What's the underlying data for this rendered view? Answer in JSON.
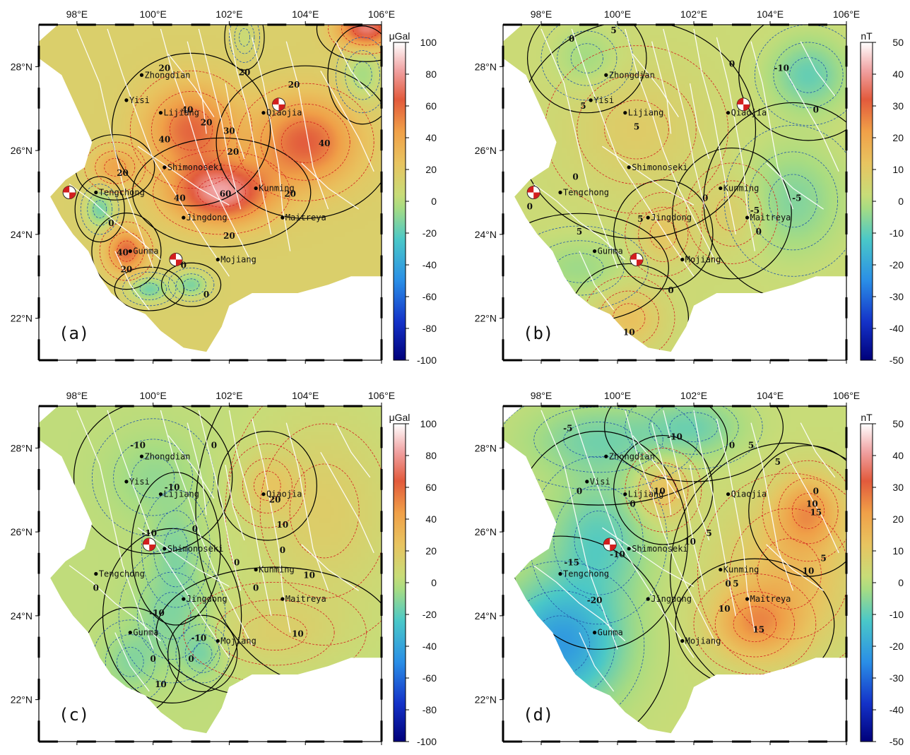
{
  "colors": {
    "ocean": "#ffffff",
    "fault": "#ffffff",
    "zero_contour": "#000000",
    "pos_contour": "#d42020",
    "neg_contour": "#2255aa",
    "city_dot": "#000000",
    "beachball_red": "#d21e1e"
  },
  "colorscale": {
    "name": "GMT polar-like diverging",
    "stops": [
      {
        "t": 0.0,
        "color": "#00007a"
      },
      {
        "t": 0.12,
        "color": "#1432c8"
      },
      {
        "t": 0.25,
        "color": "#2a8ee6"
      },
      {
        "t": 0.38,
        "color": "#4ac8c8"
      },
      {
        "t": 0.48,
        "color": "#a8dc82"
      },
      {
        "t": 0.52,
        "color": "#c8dc78"
      },
      {
        "t": 0.62,
        "color": "#e8c460"
      },
      {
        "t": 0.72,
        "color": "#f0a048"
      },
      {
        "t": 0.82,
        "color": "#e25a3c"
      },
      {
        "t": 0.91,
        "color": "#f0a0a0"
      },
      {
        "t": 1.0,
        "color": "#ffffff"
      }
    ]
  },
  "map_extent": {
    "lon": [
      97,
      106
    ],
    "lat": [
      21,
      29
    ]
  },
  "lon_ticks": [
    "98°E",
    "100°E",
    "102°E",
    "104°E",
    "106°E"
  ],
  "lat_ticks": [
    "22°N",
    "24°N",
    "26°N",
    "28°N"
  ],
  "lon_tick_values": [
    98,
    100,
    102,
    104,
    106
  ],
  "lat_tick_values": [
    22,
    24,
    26,
    28
  ],
  "cities": [
    {
      "name": "Zhongdian",
      "lon": 99.7,
      "lat": 27.8
    },
    {
      "name": "Lijiang",
      "lon": 100.2,
      "lat": 26.9
    },
    {
      "name": "Qiaojia",
      "lon": 102.9,
      "lat": 26.9
    },
    {
      "name": "Kunming",
      "lon": 102.7,
      "lat": 25.1
    },
    {
      "name": "Tengchong",
      "lon": 98.5,
      "lat": 25.0
    },
    {
      "name": "Jingdong",
      "lon": 100.8,
      "lat": 24.4
    },
    {
      "name": "Maitreya",
      "lon": 103.4,
      "lat": 24.4
    },
    {
      "name": "Mojiang",
      "lon": 101.7,
      "lat": 23.4
    },
    {
      "name": "Gunma",
      "lon": 99.4,
      "lat": 23.6
    }
  ],
  "chart_data": [
    {
      "type": "heatmap",
      "panel_label": "(a)",
      "colorbar_unit": "μGal",
      "colorbar_ticks": [
        "100",
        "80",
        "60",
        "40",
        "20",
        "0",
        "-20",
        "-40",
        "-60",
        "-80",
        "-100"
      ],
      "colorbar_range": [
        -100,
        100
      ],
      "extra_places": [
        {
          "name": "Yisi",
          "lon": 99.3,
          "lat": 27.2
        },
        {
          "name": "Shimonoseki",
          "lon": 100.3,
          "lat": 25.6
        }
      ],
      "anomalies": [
        {
          "lon": 101.8,
          "lat": 25.0,
          "value": 65,
          "sx": 0.9,
          "sy": 0.5
        },
        {
          "lon": 101.0,
          "lat": 26.5,
          "value": 45,
          "sx": 0.8,
          "sy": 0.7
        },
        {
          "lon": 104.0,
          "lat": 26.2,
          "value": 48,
          "sx": 0.9,
          "sy": 0.7
        },
        {
          "lon": 105.6,
          "lat": 28.9,
          "value": 60,
          "sx": 0.5,
          "sy": 0.3
        },
        {
          "lon": 99.3,
          "lat": 23.6,
          "value": 45,
          "sx": 0.35,
          "sy": 0.35
        },
        {
          "lon": 98.6,
          "lat": 24.6,
          "value": -30,
          "sx": 0.25,
          "sy": 0.3
        },
        {
          "lon": 99.9,
          "lat": 22.7,
          "value": -30,
          "sx": 0.35,
          "sy": 0.2
        },
        {
          "lon": 101.0,
          "lat": 22.8,
          "value": -28,
          "sx": 0.3,
          "sy": 0.2
        },
        {
          "lon": 105.5,
          "lat": 27.8,
          "value": -20,
          "sx": 0.35,
          "sy": 0.45
        },
        {
          "lon": 102.4,
          "lat": 28.7,
          "value": -10,
          "sx": 0.2,
          "sy": 0.3
        },
        {
          "lon": 99.0,
          "lat": 25.6,
          "value": 25,
          "sx": 0.4,
          "sy": 0.3
        }
      ],
      "base": 15,
      "contour_labels": [
        {
          "text": "20",
          "lon": 100.3,
          "lat": 27.9
        },
        {
          "text": "20",
          "lon": 102.4,
          "lat": 27.8
        },
        {
          "text": "20",
          "lon": 103.7,
          "lat": 27.5
        },
        {
          "text": "40",
          "lon": 100.9,
          "lat": 26.9
        },
        {
          "text": "20",
          "lon": 101.4,
          "lat": 26.6
        },
        {
          "text": "30",
          "lon": 102.0,
          "lat": 26.4
        },
        {
          "text": "40",
          "lon": 100.3,
          "lat": 26.2
        },
        {
          "text": "20",
          "lon": 102.1,
          "lat": 25.9
        },
        {
          "text": "40",
          "lon": 104.5,
          "lat": 26.1
        },
        {
          "text": "20",
          "lon": 99.2,
          "lat": 25.4
        },
        {
          "text": "40",
          "lon": 100.7,
          "lat": 24.8
        },
        {
          "text": "60",
          "lon": 101.9,
          "lat": 24.9
        },
        {
          "text": "20",
          "lon": 103.6,
          "lat": 24.9
        },
        {
          "text": "20",
          "lon": 102.0,
          "lat": 23.9
        },
        {
          "text": "0",
          "lon": 98.9,
          "lat": 24.2
        },
        {
          "text": "40",
          "lon": 99.2,
          "lat": 23.5
        },
        {
          "text": "20",
          "lon": 99.3,
          "lat": 23.1
        },
        {
          "text": "0",
          "lon": 100.8,
          "lat": 23.2
        },
        {
          "text": "0",
          "lon": 101.4,
          "lat": 22.5
        }
      ],
      "beachballs": [
        {
          "lon": 103.3,
          "lat": 27.1
        },
        {
          "lon": 97.8,
          "lat": 25.0
        },
        {
          "lon": 100.6,
          "lat": 23.4
        }
      ]
    },
    {
      "type": "heatmap",
      "panel_label": "(b)",
      "colorbar_unit": "nT",
      "colorbar_ticks": [
        "50",
        "40",
        "30",
        "20",
        "10",
        "0",
        "-10",
        "-20",
        "-30",
        "-40",
        "-50"
      ],
      "colorbar_range": [
        -50,
        50
      ],
      "extra_places": [
        {
          "name": "Yisi",
          "lon": 99.3,
          "lat": 27.2
        },
        {
          "name": "Shimonoseki",
          "lon": 100.3,
          "lat": 25.6
        }
      ],
      "anomalies": [
        {
          "lon": 105.0,
          "lat": 27.8,
          "value": -12,
          "sx": 0.7,
          "sy": 0.6
        },
        {
          "lon": 104.6,
          "lat": 24.8,
          "value": -9,
          "sx": 0.9,
          "sy": 0.9
        },
        {
          "lon": 99.2,
          "lat": 28.2,
          "value": -6,
          "sx": 0.6,
          "sy": 0.5
        },
        {
          "lon": 99.0,
          "lat": 23.2,
          "value": -6,
          "sx": 0.9,
          "sy": 0.5
        },
        {
          "lon": 101.2,
          "lat": 24.0,
          "value": 8,
          "sx": 0.5,
          "sy": 0.5
        },
        {
          "lon": 100.3,
          "lat": 22.0,
          "value": 10,
          "sx": 0.6,
          "sy": 0.5
        },
        {
          "lon": 103.0,
          "lat": 24.5,
          "value": 6,
          "sx": 0.6,
          "sy": 0.6
        },
        {
          "lon": 100.5,
          "lat": 26.5,
          "value": 6,
          "sx": 1.2,
          "sy": 1.0
        }
      ],
      "base": 3,
      "contour_labels": [
        {
          "text": "0",
          "lon": 98.8,
          "lat": 28.6
        },
        {
          "text": "5",
          "lon": 99.9,
          "lat": 28.8
        },
        {
          "text": "0",
          "lon": 103.0,
          "lat": 28.0
        },
        {
          "text": "-10",
          "lon": 104.3,
          "lat": 27.9
        },
        {
          "text": "5",
          "lon": 99.1,
          "lat": 27.0
        },
        {
          "text": "5",
          "lon": 100.5,
          "lat": 26.5
        },
        {
          "text": "0",
          "lon": 105.2,
          "lat": 26.9
        },
        {
          "text": "0",
          "lon": 98.9,
          "lat": 25.3
        },
        {
          "text": "0",
          "lon": 102.3,
          "lat": 24.8
        },
        {
          "text": "-5",
          "lon": 104.7,
          "lat": 24.8
        },
        {
          "text": "-5",
          "lon": 103.6,
          "lat": 24.5
        },
        {
          "text": "0",
          "lon": 97.7,
          "lat": 24.6
        },
        {
          "text": "5",
          "lon": 99.0,
          "lat": 24.0
        },
        {
          "text": "5",
          "lon": 100.6,
          "lat": 24.3
        },
        {
          "text": "0",
          "lon": 103.7,
          "lat": 24.0
        },
        {
          "text": "0",
          "lon": 101.4,
          "lat": 22.6
        },
        {
          "text": "10",
          "lon": 100.3,
          "lat": 21.6
        }
      ],
      "beachballs": [
        {
          "lon": 103.3,
          "lat": 27.1
        },
        {
          "lon": 97.8,
          "lat": 25.0
        },
        {
          "lon": 100.5,
          "lat": 23.4
        }
      ]
    },
    {
      "type": "heatmap",
      "panel_label": "(c)",
      "colorbar_unit": "μGal",
      "colorbar_ticks": [
        "100",
        "80",
        "60",
        "40",
        "20",
        "0",
        "-20",
        "-40",
        "-60",
        "-80",
        "-100"
      ],
      "colorbar_range": [
        -100,
        100
      ],
      "extra_places": [
        {
          "name": "Yisi",
          "lon": 99.3,
          "lat": 27.2
        },
        {
          "name": "Shimonoseki",
          "lon": 100.3,
          "lat": 25.6
        }
      ],
      "anomalies": [
        {
          "lon": 100.5,
          "lat": 24.0,
          "value": -14,
          "sx": 0.7,
          "sy": 0.8
        },
        {
          "lon": 99.4,
          "lat": 22.9,
          "value": -12,
          "sx": 0.5,
          "sy": 0.5
        },
        {
          "lon": 101.3,
          "lat": 23.1,
          "value": -14,
          "sx": 0.35,
          "sy": 0.35
        },
        {
          "lon": 100.0,
          "lat": 27.3,
          "value": -10,
          "sx": 0.8,
          "sy": 0.7
        },
        {
          "lon": 100.6,
          "lat": 25.6,
          "value": -12,
          "sx": 0.45,
          "sy": 0.7
        },
        {
          "lon": 104.5,
          "lat": 26.5,
          "value": 15,
          "sx": 1.3,
          "sy": 1.6
        },
        {
          "lon": 103.2,
          "lat": 23.6,
          "value": 12,
          "sx": 1.2,
          "sy": 0.6
        },
        {
          "lon": 103.0,
          "lat": 27.1,
          "value": 14,
          "sx": 0.5,
          "sy": 0.5
        }
      ],
      "base": 2,
      "contour_labels": [
        {
          "text": "-10",
          "lon": 99.6,
          "lat": 28.0
        },
        {
          "text": "0",
          "lon": 101.6,
          "lat": 28.0
        },
        {
          "text": "-10",
          "lon": 100.5,
          "lat": 27.0
        },
        {
          "text": "20",
          "lon": 103.2,
          "lat": 26.7
        },
        {
          "text": "10",
          "lon": 103.4,
          "lat": 26.1
        },
        {
          "text": "-10",
          "lon": 99.9,
          "lat": 25.9
        },
        {
          "text": "0",
          "lon": 101.1,
          "lat": 26.0
        },
        {
          "text": "0",
          "lon": 103.4,
          "lat": 25.5
        },
        {
          "text": "0",
          "lon": 102.2,
          "lat": 25.2
        },
        {
          "text": "10",
          "lon": 104.1,
          "lat": 24.9
        },
        {
          "text": "0",
          "lon": 98.5,
          "lat": 24.6
        },
        {
          "text": "0",
          "lon": 102.7,
          "lat": 24.6
        },
        {
          "text": "-10",
          "lon": 100.1,
          "lat": 24.0
        },
        {
          "text": "-10",
          "lon": 101.2,
          "lat": 23.4
        },
        {
          "text": "0",
          "lon": 100.0,
          "lat": 22.9
        },
        {
          "text": "0",
          "lon": 101.0,
          "lat": 22.9
        },
        {
          "text": "10",
          "lon": 103.8,
          "lat": 23.5
        },
        {
          "text": "10",
          "lon": 100.2,
          "lat": 22.3
        }
      ],
      "beachballs": [
        {
          "lon": 99.9,
          "lat": 25.7
        }
      ]
    },
    {
      "type": "heatmap",
      "panel_label": "(d)",
      "colorbar_unit": "nT",
      "colorbar_ticks": [
        "50",
        "40",
        "30",
        "20",
        "10",
        "0",
        "-10",
        "-20",
        "-30",
        "-40",
        "-50"
      ],
      "colorbar_range": [
        -50,
        50
      ],
      "extra_places": [
        {
          "name": "Visi",
          "lon": 99.2,
          "lat": 27.2
        },
        {
          "name": "Shimonoseki",
          "lon": 100.3,
          "lat": 25.6
        }
      ],
      "anomalies": [
        {
          "lon": 98.5,
          "lat": 23.3,
          "value": -24,
          "sx": 1.1,
          "sy": 1.0
        },
        {
          "lon": 99.5,
          "lat": 28.2,
          "value": -9,
          "sx": 1.3,
          "sy": 0.6
        },
        {
          "lon": 102.0,
          "lat": 28.5,
          "value": -9,
          "sx": 0.9,
          "sy": 0.5
        },
        {
          "lon": 99.5,
          "lat": 25.8,
          "value": -12,
          "sx": 0.9,
          "sy": 1.0
        },
        {
          "lon": 105.0,
          "lat": 26.5,
          "value": 18,
          "sx": 0.6,
          "sy": 0.6
        },
        {
          "lon": 103.6,
          "lat": 23.8,
          "value": 18,
          "sx": 0.8,
          "sy": 0.6
        },
        {
          "lon": 101.2,
          "lat": 27.0,
          "value": 12,
          "sx": 0.5,
          "sy": 0.5
        },
        {
          "lon": 104.5,
          "lat": 25.0,
          "value": 12,
          "sx": 1.2,
          "sy": 1.2
        }
      ],
      "base": 2,
      "contour_labels": [
        {
          "text": "-5",
          "lon": 98.7,
          "lat": 28.4
        },
        {
          "text": "-10",
          "lon": 101.5,
          "lat": 28.2
        },
        {
          "text": "0",
          "lon": 103.0,
          "lat": 28.0
        },
        {
          "text": "5",
          "lon": 103.5,
          "lat": 28.0
        },
        {
          "text": "5",
          "lon": 104.2,
          "lat": 27.6
        },
        {
          "text": "10",
          "lon": 101.1,
          "lat": 26.9
        },
        {
          "text": "0",
          "lon": 99.0,
          "lat": 26.9
        },
        {
          "text": "0",
          "lon": 100.4,
          "lat": 26.6
        },
        {
          "text": "0",
          "lon": 105.2,
          "lat": 26.9
        },
        {
          "text": "10",
          "lon": 105.1,
          "lat": 26.6
        },
        {
          "text": "15",
          "lon": 105.2,
          "lat": 26.4
        },
        {
          "text": "10",
          "lon": 101.9,
          "lat": 25.7
        },
        {
          "text": "5",
          "lon": 102.4,
          "lat": 25.9
        },
        {
          "text": "-10",
          "lon": 100.0,
          "lat": 25.4
        },
        {
          "text": "-15",
          "lon": 98.8,
          "lat": 25.2
        },
        {
          "text": "5",
          "lon": 105.4,
          "lat": 25.3
        },
        {
          "text": "10",
          "lon": 105.0,
          "lat": 25.0
        },
        {
          "text": "0",
          "lon": 102.9,
          "lat": 24.7
        },
        {
          "text": "5",
          "lon": 103.1,
          "lat": 24.7
        },
        {
          "text": "-20",
          "lon": 99.4,
          "lat": 24.3
        },
        {
          "text": "10",
          "lon": 102.8,
          "lat": 24.1
        },
        {
          "text": "15",
          "lon": 103.7,
          "lat": 23.6
        }
      ],
      "beachballs": [
        {
          "lon": 99.8,
          "lat": 25.7
        }
      ]
    }
  ]
}
